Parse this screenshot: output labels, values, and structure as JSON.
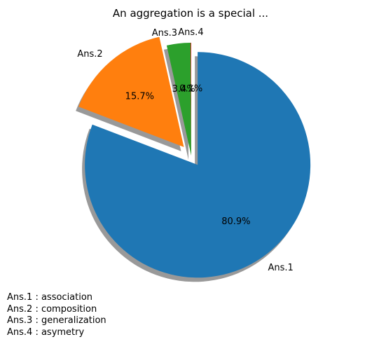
{
  "chart_data": {
    "type": "pie",
    "title": "An aggregation is a special ...",
    "slices": [
      {
        "label": "Ans.1",
        "value": 80.9,
        "pct_label": "80.9%",
        "color": "#1f77b4",
        "exploded": true
      },
      {
        "label": "Ans.2",
        "value": 15.7,
        "pct_label": "15.7%",
        "color": "#ff7f0e",
        "exploded": true
      },
      {
        "label": "Ans.3",
        "value": 3.4,
        "pct_label": "3.4%",
        "color": "#2ca02c",
        "exploded": false
      },
      {
        "label": "Ans.4",
        "value": 0.1,
        "pct_label": "0.1%",
        "color": "#d62728",
        "exploded": false
      }
    ],
    "start_angle_deg": 90,
    "direction": "clockwise",
    "shadow": true
  },
  "legend_notes": [
    "Ans.1 : association",
    "Ans.2 : composition",
    "Ans.3 : generalization",
    "Ans.4 : asymetry"
  ]
}
